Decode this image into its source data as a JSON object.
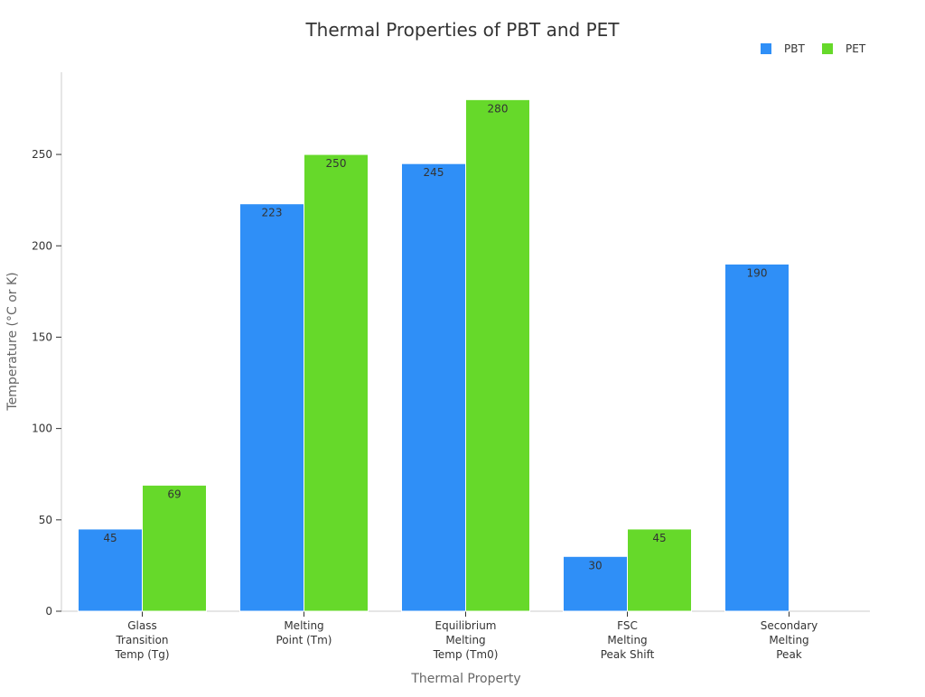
{
  "chart_data": {
    "type": "bar",
    "title": "Thermal Properties of PBT and PET",
    "xlabel": "Thermal Property",
    "ylabel": "Temperature (°C or K)",
    "categories": [
      [
        "Glass",
        "Transition",
        "Temp (Tg)"
      ],
      [
        "Melting",
        "Point (Tm)"
      ],
      [
        "Equilibrium",
        "Melting",
        "Temp (Tm0)"
      ],
      [
        "FSC",
        "Melting",
        "Peak Shift"
      ],
      [
        "Secondary",
        "Melting",
        "Peak"
      ]
    ],
    "series": [
      {
        "name": "PBT",
        "color": "#2f8ff7",
        "values": [
          45,
          223,
          245,
          30,
          190
        ]
      },
      {
        "name": "PET",
        "color": "#66d92a",
        "values": [
          69,
          250,
          280,
          45,
          null
        ]
      }
    ],
    "ylim": [
      0,
      295
    ],
    "yticks": [
      0,
      50,
      100,
      150,
      200,
      250
    ],
    "legend": "top-right",
    "grid": false
  }
}
